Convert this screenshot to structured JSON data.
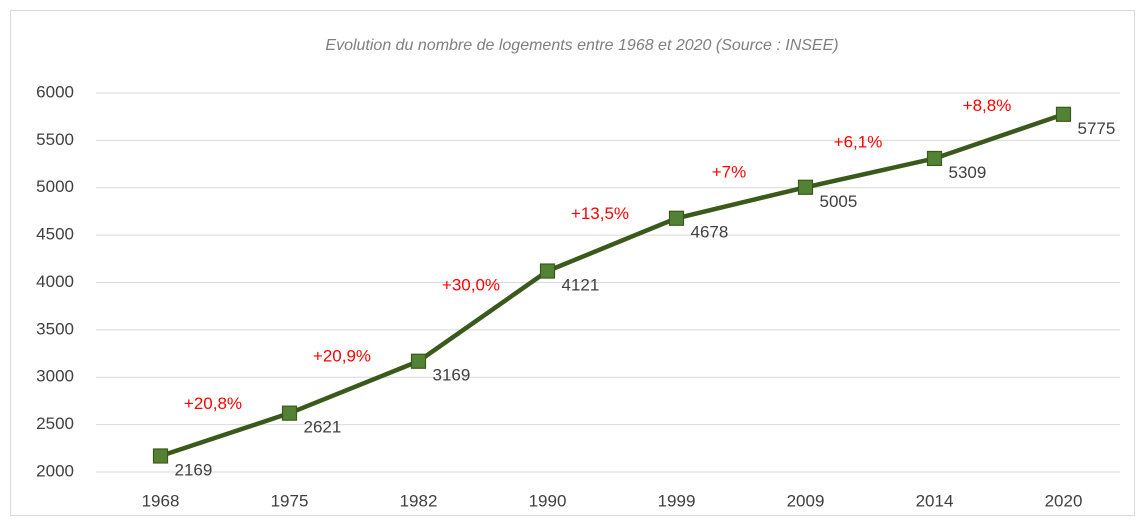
{
  "chart_data": {
    "type": "line",
    "title": "Evolution du nombre de logements entre 1968 et 2020 (Source : INSEE)",
    "categories": [
      "1968",
      "1975",
      "1982",
      "1990",
      "1999",
      "2009",
      "2014",
      "2020"
    ],
    "series": [
      {
        "name": "Logements",
        "color": "#3a5a1c",
        "marker_color": "#548235",
        "values": [
          2169,
          2621,
          3169,
          4121,
          4678,
          5005,
          5309,
          5775
        ]
      }
    ],
    "annotations": [
      "+20,8%",
      "+20,9%",
      "+30,0%",
      "+13,5%",
      "+7%",
      "+6,1%",
      "+8,8%"
    ],
    "annotation_color": "#ff0000",
    "ylim": [
      2000,
      6000
    ],
    "yticks": [
      2000,
      2500,
      3000,
      3500,
      4000,
      4500,
      5000,
      5500,
      6000
    ],
    "grid": true
  }
}
